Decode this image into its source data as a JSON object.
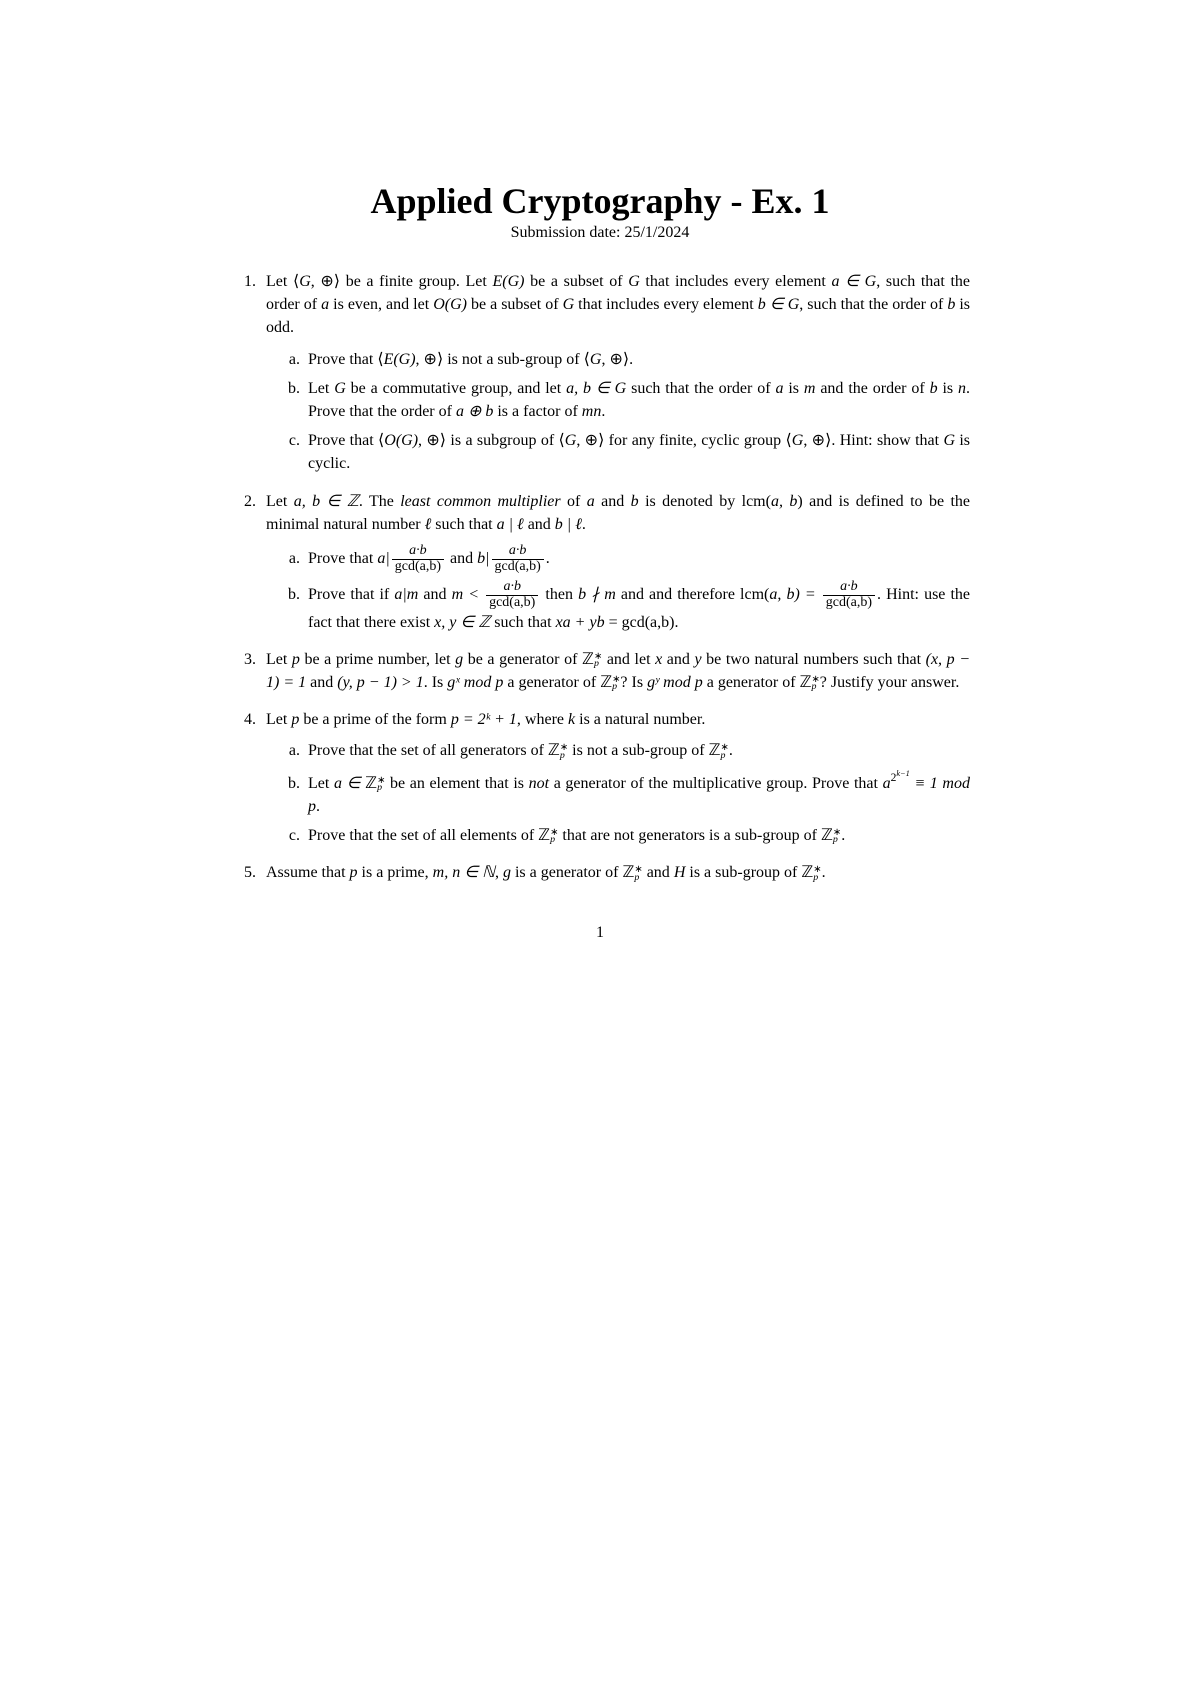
{
  "title": "Applied Cryptography - Ex. 1",
  "subtitle": "Submission date: 25/1/2024",
  "page_number": "1",
  "q1": {
    "intro_a": "Let ⟨",
    "intro_b": ", ⊕⟩ be a finite group. Let ",
    "intro_c": " be a subset of ",
    "intro_d": " that includes every element ",
    "intro_e": ", such that the order of ",
    "intro_f": " is even, and let ",
    "intro_g": " be a subset of ",
    "intro_h": " that includes every element ",
    "intro_i": ", such that the order of ",
    "intro_j": " is odd.",
    "a1": "Prove that ⟨",
    "a2": ", ⊕⟩ is not a sub-group of ⟨",
    "a3": ", ⊕⟩.",
    "b1": "Let ",
    "b2": " be a commutative group, and let ",
    "b3": " such that the order of ",
    "b4": " is ",
    "b5": " and the order of ",
    "b6": " is ",
    "b7": ". Prove that the order of ",
    "b8": " is a factor of ",
    "c1": "Prove that ⟨",
    "c2": ", ⊕⟩ is a subgroup of ⟨",
    "c3": ", ⊕⟩ for any finite, cyclic group ⟨",
    "c4": ", ⊕⟩. Hint: show that ",
    "c5": " is cyclic."
  },
  "q2": {
    "i1": "Let ",
    "i2": ". The ",
    "i3": "least common multiplier",
    "i4": " of ",
    "i5": " and ",
    "i6": " is denoted by lcm(",
    "i7": ") and is defined to be the minimal natural number ",
    "i8": " such that ",
    "i9": " and ",
    "a1": "Prove that ",
    "a_and": " and ",
    "b1": "Prove that if ",
    "b2": " and ",
    "b3": " then ",
    "b4": " and and therefore lcm(",
    "b5": ". Hint: use the fact that there exist ",
    "b6": " such that ",
    "b7": " = gcd(a,b)."
  },
  "q3": {
    "t1": "Let ",
    "t2": " be a prime number, let ",
    "t3": " be a generator of ",
    "t4": " and let ",
    "t5": " and ",
    "t6": " be two natural numbers such that ",
    "t7": " and ",
    "t8": ". Is ",
    "t9": " a generator of ",
    "t10": "? Is ",
    "t11": " a generator of ",
    "t12": "? Justify your answer."
  },
  "q4": {
    "i1": "Let ",
    "i2": " be a prime of the form ",
    "i3": ", where ",
    "i4": " is a natural number.",
    "a1": "Prove that the set of all generators of ",
    "a2": " is not a sub-group of ",
    "b1": "Let ",
    "b2": " be an element that is ",
    "b3": "not",
    "b4": " a generator of the multiplicative group. Prove that ",
    "c1": "Prove that the set of all elements of ",
    "c2": " that are not generators is a sub-group of "
  },
  "q5": {
    "t1": "Assume that ",
    "t2": " is a prime, ",
    "t3": " is a generator of ",
    "t4": " and ",
    "t5": " is a sub-group of "
  },
  "sym": {
    "G": "G",
    "EG": "E(G)",
    "OG": "O(G)",
    "a": "a",
    "b": "b",
    "ab": "a, b",
    "ainG": "a ∈ G",
    "binG": "b ∈ G",
    "abinG": "a, b ∈ G",
    "abinZ": "a, b ∈ ℤ",
    "m": "m",
    "n": "n",
    "aoplusb": "a ⊕ b",
    "mn": "mn",
    "ell": "ℓ",
    "aell": "a | ℓ",
    "bell": "b | ℓ",
    "adiv": "a|",
    "bdiv": "b|",
    "abprod": "a·b",
    "gcdab": "gcd(a,b)",
    "am": "a|m",
    "mlt": "m < ",
    "bnm": "b ∤ m",
    "lcmeq": "a, b) = ",
    "xyZ": "x, y ∈ ℤ",
    "xayb": "xa + yb",
    "p": "p",
    "g": "g",
    "x": "x",
    "y": "y",
    "Zpstar": "ℤ",
    "xp1": "(x, p − 1) = 1",
    "yp1": "(y, p − 1) > 1",
    "gxmodp": "gˣ mod p",
    "gymodp": "gʸ mod p",
    "p2k1": "p = 2ᵏ + 1",
    "k": "k",
    "ainZp": "a ∈ ",
    "a2k1": "a",
    "exp2k1": "2",
    "km1": "k−1",
    "eq1modp": " ≡ 1 mod p",
    "mnN": "m, n ∈ ℕ",
    "H": "H",
    "dot": ".",
    "star": "∗",
    "psub": "p"
  }
}
